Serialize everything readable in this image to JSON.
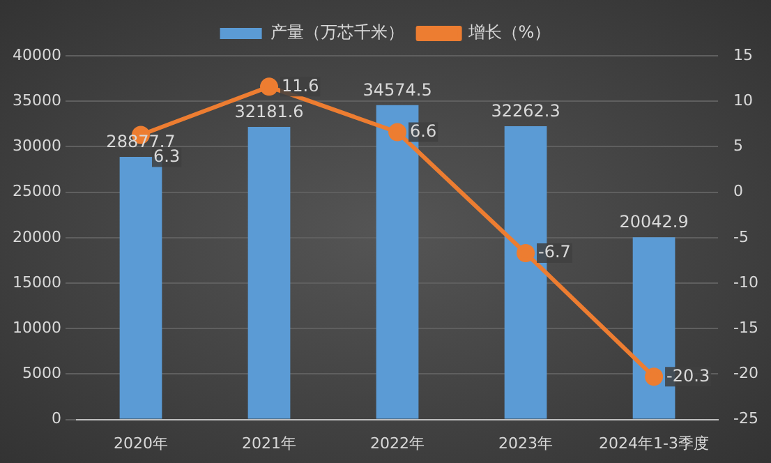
{
  "chart_data": {
    "type": "bar",
    "categories": [
      "2020年",
      "2021年",
      "2022年",
      "2023年",
      "2024年1-3季度"
    ],
    "series": [
      {
        "name": "产量（万芯千米）",
        "color": "#5b9bd5",
        "values": [
          28877.7,
          32181.6,
          34574.5,
          32262.3,
          20042.9
        ]
      },
      {
        "name": "增长（%）",
        "type": "line",
        "axis": "y2",
        "color": "#ed7d31",
        "values": [
          6.3,
          11.6,
          6.6,
          -6.7,
          -20.3
        ]
      }
    ],
    "ylim": [
      0,
      40000
    ],
    "yticks": [
      0,
      5000,
      10000,
      15000,
      20000,
      25000,
      30000,
      35000,
      40000
    ],
    "y2lim": [
      -25,
      15
    ],
    "y2ticks": [
      -25,
      -20,
      -15,
      -10,
      -5,
      0,
      5,
      10,
      15
    ],
    "grid": "y",
    "legend": "top",
    "marker": "circle",
    "line_style": "solid",
    "data_labels": true
  }
}
